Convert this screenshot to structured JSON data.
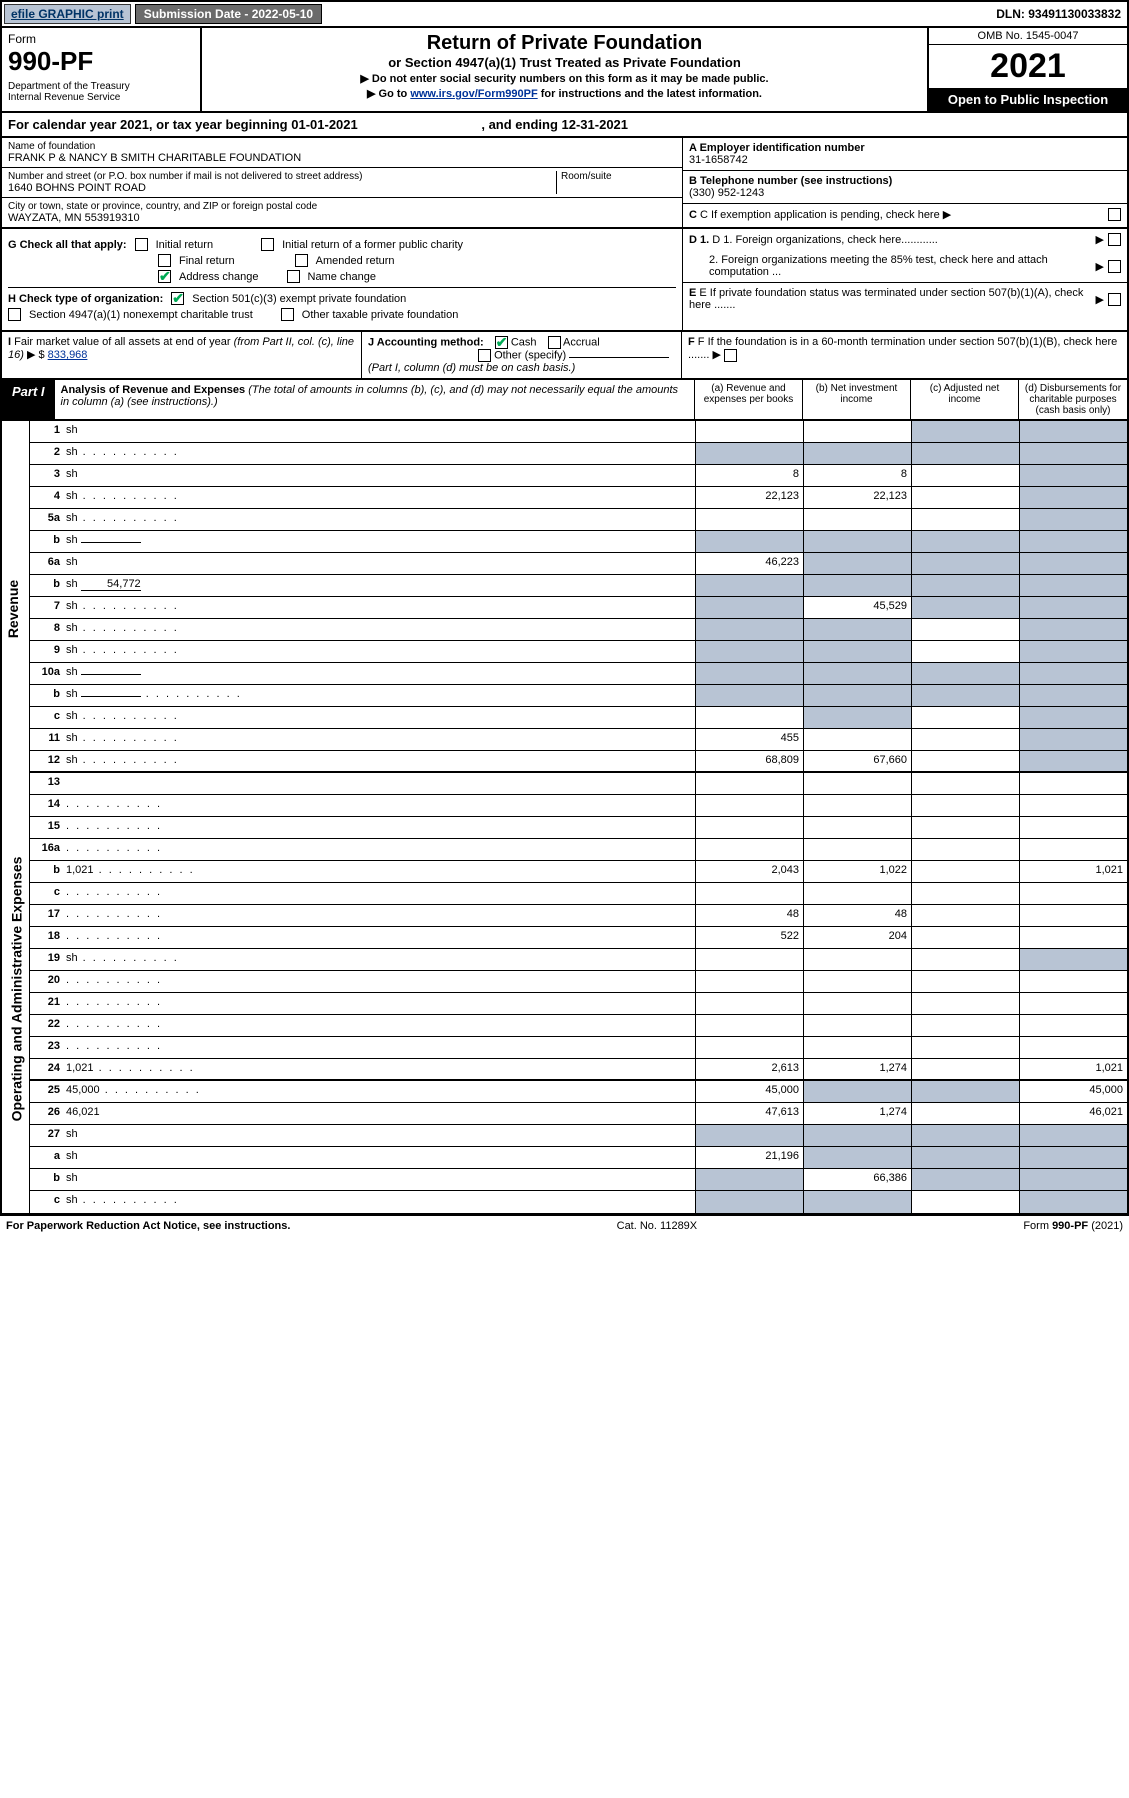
{
  "top": {
    "efile": "efile GRAPHIC print",
    "sub_date_lbl": "Submission Date - 2022-05-10",
    "dln": "DLN: 93491130033832"
  },
  "hdr": {
    "form": "Form",
    "num": "990-PF",
    "dept": "Department of the Treasury\nInternal Revenue Service",
    "title": "Return of Private Foundation",
    "sub": "or Section 4947(a)(1) Trust Treated as Private Foundation",
    "note1": "▶ Do not enter social security numbers on this form as it may be made public.",
    "note2_a": "▶ Go to ",
    "note2_link": "www.irs.gov/Form990PF",
    "note2_b": " for instructions and the latest information.",
    "omb": "OMB No. 1545-0047",
    "year": "2021",
    "open": "Open to Public Inspection"
  },
  "cal": {
    "pre": "For calendar year 2021, or tax year beginning ",
    "begin": "01-01-2021",
    "mid": " , and ending ",
    "end": "12-31-2021"
  },
  "id": {
    "name_lbl": "Name of foundation",
    "name": "FRANK P & NANCY B SMITH CHARITABLE FOUNDATION",
    "addr_lbl": "Number and street (or P.O. box number if mail is not delivered to street address)",
    "addr": "1640 BOHNS POINT ROAD",
    "room_lbl": "Room/suite",
    "city_lbl": "City or town, state or province, country, and ZIP or foreign postal code",
    "city": "WAYZATA, MN  553919310",
    "ein_lbl": "A Employer identification number",
    "ein": "31-1658742",
    "tel_lbl": "B Telephone number (see instructions)",
    "tel": "(330) 952-1243",
    "c_lbl": "C If exemption application is pending, check here ▶",
    "d1": "D 1. Foreign organizations, check here............",
    "d2": "2. Foreign organizations meeting the 85% test, check here and attach computation ...",
    "e": "E If private foundation status was terminated under section 507(b)(1)(A), check here .......",
    "f": "F If the foundation is in a 60-month termination under section 507(b)(1)(B), check here ......."
  },
  "g": {
    "lbl": "G Check all that apply:",
    "opts": [
      "Initial return",
      "Final return",
      "Address change",
      "Initial return of a former public charity",
      "Amended return",
      "Name change"
    ],
    "checked": [
      false,
      false,
      true,
      false,
      false,
      false
    ]
  },
  "h": {
    "lbl": "H Check type of organization:",
    "opt1": "Section 501(c)(3) exempt private foundation",
    "opt2": "Section 4947(a)(1) nonexempt charitable trust",
    "opt3": "Other taxable private foundation"
  },
  "i": {
    "lbl": "I Fair market value of all assets at end of year (from Part II, col. (c), line 16) ▶ $",
    "val": "833,968"
  },
  "j": {
    "lbl": "J Accounting method:",
    "cash": "Cash",
    "accrual": "Accrual",
    "other": "Other (specify)",
    "note": "(Part I, column (d) must be on cash basis.)"
  },
  "part1": {
    "lbl": "Part I",
    "title": "Analysis of Revenue and Expenses",
    "note": " (The total of amounts in columns (b), (c), and (d) may not necessarily equal the amounts in column (a) (see instructions).)",
    "cols": {
      "a": "(a) Revenue and expenses per books",
      "b": "(b) Net investment income",
      "c": "(c) Adjusted net income",
      "d": "(d) Disbursements for charitable purposes (cash basis only)"
    }
  },
  "side": {
    "rev": "Revenue",
    "oae": "Operating and Administrative Expenses"
  },
  "rows": [
    {
      "n": "1",
      "d": "sh",
      "a": "",
      "b": "",
      "c": "sh"
    },
    {
      "n": "2",
      "d": "sh",
      "dots": true,
      "a": "sh",
      "b": "sh",
      "c": "sh"
    },
    {
      "n": "3",
      "d": "sh",
      "a": "8",
      "b": "8",
      "c": ""
    },
    {
      "n": "4",
      "d": "sh",
      "dots": true,
      "a": "22,123",
      "b": "22,123",
      "c": ""
    },
    {
      "n": "5a",
      "d": "sh",
      "dots": true,
      "a": "",
      "b": "",
      "c": ""
    },
    {
      "n": "b",
      "d": "sh",
      "inner": "",
      "a": "sh",
      "b": "sh",
      "c": "sh"
    },
    {
      "n": "6a",
      "d": "sh",
      "a": "46,223",
      "b": "sh",
      "c": "sh"
    },
    {
      "n": "b",
      "d": "sh",
      "inner": "54,772",
      "a": "sh",
      "b": "sh",
      "c": "sh"
    },
    {
      "n": "7",
      "d": "sh",
      "dots": true,
      "a": "sh",
      "b": "45,529",
      "c": "sh"
    },
    {
      "n": "8",
      "d": "sh",
      "dots": true,
      "a": "sh",
      "b": "sh",
      "c": ""
    },
    {
      "n": "9",
      "d": "sh",
      "dots": true,
      "a": "sh",
      "b": "sh",
      "c": ""
    },
    {
      "n": "10a",
      "d": "sh",
      "inner": "",
      "a": "sh",
      "b": "sh",
      "c": "sh"
    },
    {
      "n": "b",
      "d": "sh",
      "dots": true,
      "inner": "",
      "a": "sh",
      "b": "sh",
      "c": "sh"
    },
    {
      "n": "c",
      "d": "sh",
      "dots": true,
      "a": "",
      "b": "sh",
      "c": ""
    },
    {
      "n": "11",
      "d": "sh",
      "dots": true,
      "a": "455",
      "b": "",
      "c": ""
    },
    {
      "n": "12",
      "d": "sh",
      "dots": true,
      "a": "68,809",
      "b": "67,660",
      "c": ""
    },
    {
      "n": "13",
      "d": "",
      "a": "",
      "b": "",
      "c": ""
    },
    {
      "n": "14",
      "d": "",
      "dots": true,
      "a": "",
      "b": "",
      "c": ""
    },
    {
      "n": "15",
      "d": "",
      "dots": true,
      "a": "",
      "b": "",
      "c": ""
    },
    {
      "n": "16a",
      "d": "",
      "dots": true,
      "a": "",
      "b": "",
      "c": ""
    },
    {
      "n": "b",
      "d": "1,021",
      "dots": true,
      "a": "2,043",
      "b": "1,022",
      "c": ""
    },
    {
      "n": "c",
      "d": "",
      "dots": true,
      "a": "",
      "b": "",
      "c": ""
    },
    {
      "n": "17",
      "d": "",
      "dots": true,
      "a": "48",
      "b": "48",
      "c": ""
    },
    {
      "n": "18",
      "d": "",
      "dots": true,
      "a": "522",
      "b": "204",
      "c": ""
    },
    {
      "n": "19",
      "d": "sh",
      "dots": true,
      "a": "",
      "b": "",
      "c": ""
    },
    {
      "n": "20",
      "d": "",
      "dots": true,
      "a": "",
      "b": "",
      "c": ""
    },
    {
      "n": "21",
      "d": "",
      "dots": true,
      "a": "",
      "b": "",
      "c": ""
    },
    {
      "n": "22",
      "d": "",
      "dots": true,
      "a": "",
      "b": "",
      "c": ""
    },
    {
      "n": "23",
      "d": "",
      "dots": true,
      "a": "",
      "b": "",
      "c": ""
    },
    {
      "n": "24",
      "d": "1,021",
      "dots": true,
      "a": "2,613",
      "b": "1,274",
      "c": ""
    },
    {
      "n": "25",
      "d": "45,000",
      "dots": true,
      "a": "45,000",
      "b": "sh",
      "c": "sh"
    },
    {
      "n": "26",
      "d": "46,021",
      "a": "47,613",
      "b": "1,274",
      "c": ""
    },
    {
      "n": "27",
      "d": "sh",
      "a": "sh",
      "b": "sh",
      "c": "sh"
    },
    {
      "n": "a",
      "d": "sh",
      "a": "21,196",
      "b": "sh",
      "c": "sh"
    },
    {
      "n": "b",
      "d": "sh",
      "a": "sh",
      "b": "66,386",
      "c": "sh"
    },
    {
      "n": "c",
      "d": "sh",
      "dots": true,
      "a": "sh",
      "b": "sh",
      "c": ""
    }
  ],
  "ftr": {
    "l": "For Paperwork Reduction Act Notice, see instructions.",
    "c": "Cat. No. 11289X",
    "r": "Form 990-PF (2021)"
  },
  "colors": {
    "shade": "#b8c4d4",
    "link": "#003399",
    "check": "#00aa55"
  }
}
